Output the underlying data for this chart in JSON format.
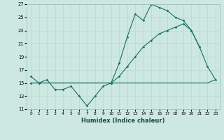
{
  "xlabel": "Humidex (Indice chaleur)",
  "bg_color": "#cce8e0",
  "grid_color": "#b8d8d0",
  "line_color": "#1a6e64",
  "xlim": [
    -0.5,
    23.5
  ],
  "ylim": [
    11,
    27
  ],
  "yticks": [
    11,
    13,
    15,
    17,
    19,
    21,
    23,
    25,
    27
  ],
  "xticks": [
    0,
    1,
    2,
    3,
    4,
    5,
    6,
    7,
    8,
    9,
    10,
    11,
    12,
    13,
    14,
    15,
    16,
    17,
    18,
    19,
    20,
    21,
    22,
    23
  ],
  "series1_x": [
    0,
    1,
    2,
    3,
    4,
    5,
    6,
    7,
    8,
    9,
    10,
    11,
    12,
    13,
    14,
    15,
    16,
    17,
    18,
    19,
    20,
    21
  ],
  "series1_y": [
    16,
    15,
    15.5,
    14,
    14,
    14.5,
    13,
    11.5,
    13,
    14.5,
    15,
    18,
    22,
    25.5,
    24.5,
    27,
    26.5,
    26,
    25,
    24.5,
    23,
    20.5
  ],
  "series2_x": [
    0,
    10,
    11,
    12,
    13,
    14,
    15,
    16,
    17,
    18,
    19,
    20,
    21,
    22,
    23
  ],
  "series2_y": [
    15,
    15,
    16,
    17.5,
    19,
    20.5,
    21.5,
    22.5,
    23,
    23.5,
    24,
    23,
    20.5,
    17.5,
    15.5
  ],
  "series3_x": [
    0,
    10,
    11,
    12,
    13,
    14,
    15,
    16,
    17,
    18,
    19,
    20,
    21,
    22,
    23
  ],
  "series3_y": [
    15,
    15,
    15,
    15,
    15,
    15,
    15,
    15,
    15,
    15,
    15,
    15,
    15,
    15,
    15.5
  ]
}
